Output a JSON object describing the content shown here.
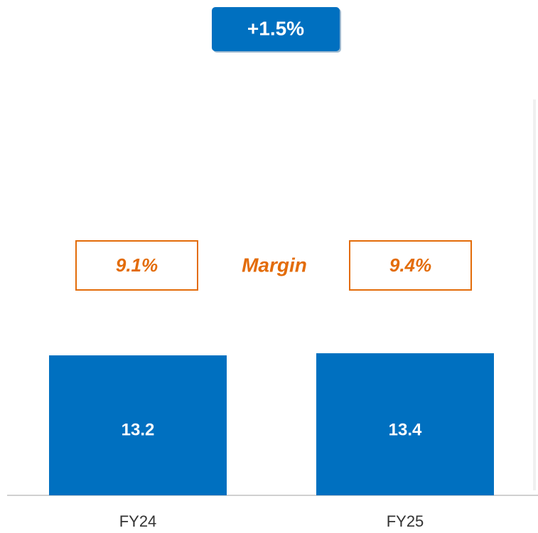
{
  "chart_data": {
    "type": "bar",
    "categories": [
      "FY24",
      "FY25"
    ],
    "values": [
      13.2,
      13.4
    ],
    "color": "#0070c0",
    "growth_label": "+1.5%",
    "margin": {
      "label": "Margin",
      "values": [
        9.1,
        9.4
      ],
      "value_labels": [
        "9.1%",
        "9.4%"
      ],
      "color": "#e36c09"
    }
  }
}
